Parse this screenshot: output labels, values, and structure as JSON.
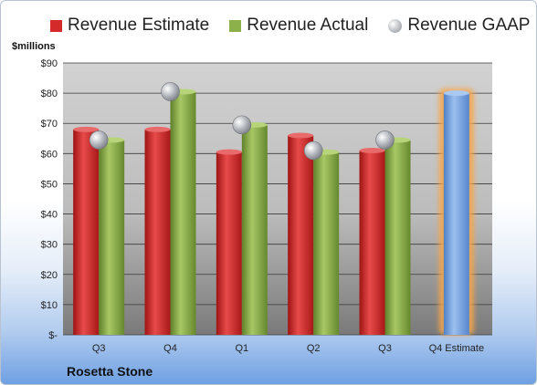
{
  "chart_data": {
    "type": "bar",
    "title": "",
    "ylabel": "$millions",
    "xlabel": "",
    "ylim": [
      0,
      90
    ],
    "yticks": [
      0,
      10,
      20,
      30,
      40,
      50,
      60,
      70,
      80,
      90
    ],
    "ytick_labels": [
      "$-",
      "$10",
      "$20",
      "$30",
      "$40",
      "$50",
      "$60",
      "$70",
      "$80",
      "$90"
    ],
    "categories": [
      "Q3",
      "Q4",
      "Q1",
      "Q2",
      "Q3",
      "Q4 Estimate"
    ],
    "series": [
      {
        "name": "Revenue Estimate",
        "type": "bar",
        "color": "#d42a2a",
        "values": [
          68,
          68,
          60.5,
          66,
          61,
          80
        ]
      },
      {
        "name": "Revenue Actual",
        "type": "bar",
        "color": "#8cb04a",
        "values": [
          64.5,
          80.5,
          69.5,
          60.5,
          64.5,
          null
        ]
      },
      {
        "name": "Revenue GAAP",
        "type": "marker",
        "color": "#a9adb3",
        "values": [
          64.5,
          80.5,
          69.5,
          61,
          64.5,
          null
        ]
      }
    ],
    "estimate_bar_color": "#7aa5e0",
    "estimate_glow_color": "#f5a64a",
    "legend_position": "top",
    "grid": true,
    "company": "Rosetta Stone"
  }
}
